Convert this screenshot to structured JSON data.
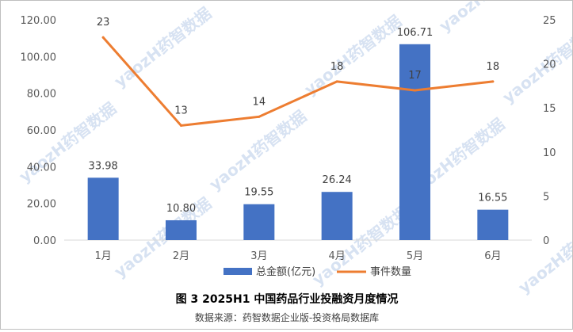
{
  "chart_data": {
    "type": "bar",
    "categories": [
      "1月",
      "2月",
      "3月",
      "4月",
      "5月",
      "6月"
    ],
    "series": [
      {
        "name": "总金额(亿元)",
        "type": "bar",
        "axis": "left",
        "color": "#4472c4",
        "values": [
          33.98,
          10.8,
          19.55,
          26.24,
          106.71,
          16.55
        ],
        "labels": [
          "33.98",
          "10.80",
          "19.55",
          "26.24",
          "106.71",
          "16.55"
        ]
      },
      {
        "name": "事件数量",
        "type": "line",
        "axis": "right",
        "color": "#ed7d31",
        "values": [
          23,
          13,
          14,
          18,
          17,
          18
        ],
        "labels": [
          "23",
          "13",
          "14",
          "18",
          "17",
          "18"
        ]
      }
    ],
    "yleft": {
      "min": 0,
      "max": 120,
      "ticks": [
        "0.00",
        "20.00",
        "40.00",
        "60.00",
        "80.00",
        "100.00",
        "120.00"
      ]
    },
    "yright": {
      "min": 0,
      "max": 25,
      "ticks": [
        "0",
        "5",
        "10",
        "15",
        "20",
        "25"
      ]
    },
    "grid": false,
    "legend": "bottom"
  },
  "title": "图 3 2025H1 中国药品行业投融资月度情况",
  "source": "数据来源：药智数据企业版-投资格局数据库",
  "watermark": "yaozH药智数据"
}
